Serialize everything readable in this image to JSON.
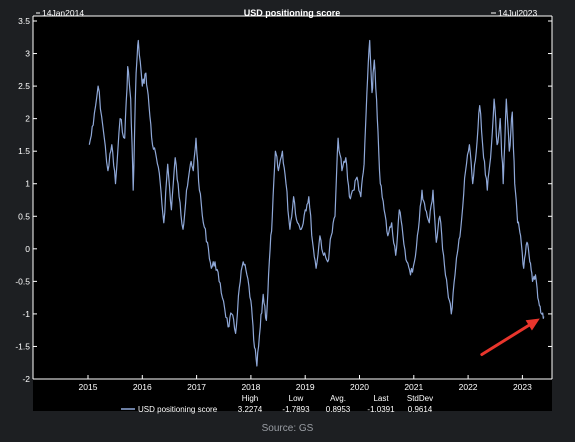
{
  "source_caption": "Source: GS",
  "chart_data": {
    "type": "line",
    "title": "USD positioning score",
    "date_start_label": "14Jan2014",
    "date_end_label": "14Jul2023",
    "x_range": [
      "2014-01-14",
      "2023-07-14"
    ],
    "ylim": [
      -2,
      3.5
    ],
    "y_ticks": [
      "3.5",
      "3",
      "2.5",
      "2",
      "1.5",
      "1",
      "0.5",
      "0",
      "-0.5",
      "-1",
      "-1.5",
      "-2"
    ],
    "x_ticks": [
      "2015",
      "2016",
      "2017",
      "2018",
      "2019",
      "2020",
      "2021",
      "2022",
      "2023"
    ],
    "series": [
      {
        "name": "USD positioning score",
        "color": "#8fa8d8",
        "points": [
          [
            "2015-01-10",
            1.6
          ],
          [
            "2015-02-05",
            1.9
          ],
          [
            "2015-03-10",
            2.5
          ],
          [
            "2015-04-10",
            1.9
          ],
          [
            "2015-05-15",
            1.2
          ],
          [
            "2015-06-10",
            1.6
          ],
          [
            "2015-07-05",
            1.0
          ],
          [
            "2015-08-05",
            2.0
          ],
          [
            "2015-09-05",
            1.7
          ],
          [
            "2015-09-25",
            2.8
          ],
          [
            "2015-10-15",
            2.3
          ],
          [
            "2015-11-01",
            0.9
          ],
          [
            "2015-11-20",
            2.7
          ],
          [
            "2015-12-05",
            3.2
          ],
          [
            "2016-01-01",
            2.5
          ],
          [
            "2016-01-25",
            2.7
          ],
          [
            "2016-02-15",
            2.2
          ],
          [
            "2016-03-10",
            1.6
          ],
          [
            "2016-04-05",
            1.4
          ],
          [
            "2016-05-01",
            1.0
          ],
          [
            "2016-05-25",
            0.4
          ],
          [
            "2016-06-20",
            1.3
          ],
          [
            "2016-07-15",
            0.6
          ],
          [
            "2016-08-10",
            1.4
          ],
          [
            "2016-09-05",
            0.8
          ],
          [
            "2016-10-01",
            0.3
          ],
          [
            "2016-10-25",
            0.9
          ],
          [
            "2016-11-20",
            1.3
          ],
          [
            "2016-12-10",
            1.2
          ],
          [
            "2016-12-28",
            1.7
          ],
          [
            "2017-01-20",
            0.9
          ],
          [
            "2017-02-15",
            0.4
          ],
          [
            "2017-03-15",
            0.1
          ],
          [
            "2017-04-10",
            -0.3
          ],
          [
            "2017-05-05",
            -0.2
          ],
          [
            "2017-06-01",
            -0.5
          ],
          [
            "2017-07-01",
            -0.8
          ],
          [
            "2017-08-01",
            -1.2
          ],
          [
            "2017-08-25",
            -1.0
          ],
          [
            "2017-09-20",
            -1.3
          ],
          [
            "2017-10-15",
            -0.6
          ],
          [
            "2017-11-10",
            -0.2
          ],
          [
            "2017-12-05",
            -0.4
          ],
          [
            "2018-01-01",
            -0.8
          ],
          [
            "2018-01-20",
            -1.4
          ],
          [
            "2018-02-10",
            -1.8
          ],
          [
            "2018-03-05",
            -1.2
          ],
          [
            "2018-03-25",
            -0.7
          ],
          [
            "2018-04-15",
            -1.1
          ],
          [
            "2018-05-05",
            -0.2
          ],
          [
            "2018-05-25",
            0.5
          ],
          [
            "2018-06-15",
            1.5
          ],
          [
            "2018-07-05",
            1.2
          ],
          [
            "2018-08-01",
            1.5
          ],
          [
            "2018-08-25",
            1.0
          ],
          [
            "2018-09-20",
            0.3
          ],
          [
            "2018-10-15",
            0.8
          ],
          [
            "2018-11-10",
            0.4
          ],
          [
            "2018-12-05",
            0.3
          ],
          [
            "2019-01-01",
            0.6
          ],
          [
            "2019-01-25",
            0.8
          ],
          [
            "2019-02-20",
            0.1
          ],
          [
            "2019-03-15",
            -0.3
          ],
          [
            "2019-04-10",
            0.2
          ],
          [
            "2019-05-05",
            -0.1
          ],
          [
            "2019-06-01",
            -0.2
          ],
          [
            "2019-06-25",
            0.2
          ],
          [
            "2019-07-20",
            0.5
          ],
          [
            "2019-08-10",
            1.7
          ],
          [
            "2019-09-05",
            1.2
          ],
          [
            "2019-10-01",
            1.4
          ],
          [
            "2019-10-25",
            0.8
          ],
          [
            "2019-11-20",
            0.9
          ],
          [
            "2019-12-15",
            1.1
          ],
          [
            "2020-01-10",
            0.8
          ],
          [
            "2020-02-01",
            1.3
          ],
          [
            "2020-02-20",
            2.4
          ],
          [
            "2020-03-10",
            3.2
          ],
          [
            "2020-03-25",
            2.4
          ],
          [
            "2020-04-10",
            2.9
          ],
          [
            "2020-04-30",
            2.0
          ],
          [
            "2020-05-20",
            1.0
          ],
          [
            "2020-06-15",
            0.6
          ],
          [
            "2020-07-10",
            0.2
          ],
          [
            "2020-08-05",
            0.4
          ],
          [
            "2020-09-01",
            -0.1
          ],
          [
            "2020-09-25",
            0.6
          ],
          [
            "2020-10-20",
            0.2
          ],
          [
            "2020-11-15",
            -0.2
          ],
          [
            "2020-12-10",
            -0.4
          ],
          [
            "2021-01-05",
            -0.2
          ],
          [
            "2021-02-01",
            0.3
          ],
          [
            "2021-02-25",
            0.9
          ],
          [
            "2021-03-20",
            0.6
          ],
          [
            "2021-04-15",
            0.4
          ],
          [
            "2021-05-10",
            0.9
          ],
          [
            "2021-06-01",
            0.1
          ],
          [
            "2021-06-25",
            0.5
          ],
          [
            "2021-07-20",
            -0.1
          ],
          [
            "2021-08-15",
            -0.6
          ],
          [
            "2021-09-10",
            -1.0
          ],
          [
            "2021-10-05",
            -0.4
          ],
          [
            "2021-10-25",
            0.0
          ],
          [
            "2021-11-20",
            0.5
          ],
          [
            "2021-12-15",
            1.2
          ],
          [
            "2022-01-10",
            1.6
          ],
          [
            "2022-02-01",
            1.0
          ],
          [
            "2022-02-25",
            1.5
          ],
          [
            "2022-03-20",
            2.2
          ],
          [
            "2022-04-15",
            1.4
          ],
          [
            "2022-05-10",
            0.9
          ],
          [
            "2022-06-01",
            1.4
          ],
          [
            "2022-06-25",
            2.3
          ],
          [
            "2022-07-15",
            1.6
          ],
          [
            "2022-08-05",
            2.0
          ],
          [
            "2022-08-25",
            1.0
          ],
          [
            "2022-09-15",
            2.3
          ],
          [
            "2022-10-05",
            1.5
          ],
          [
            "2022-10-25",
            2.1
          ],
          [
            "2022-11-10",
            1.0
          ],
          [
            "2022-11-30",
            0.4
          ],
          [
            "2022-12-20",
            0.2
          ],
          [
            "2023-01-10",
            -0.3
          ],
          [
            "2023-02-01",
            0.1
          ],
          [
            "2023-02-20",
            -0.2
          ],
          [
            "2023-03-10",
            -0.5
          ],
          [
            "2023-03-30",
            -0.4
          ],
          [
            "2023-04-20",
            -0.8
          ],
          [
            "2023-05-10",
            -1.0
          ],
          [
            "2023-05-25",
            -1.04
          ]
        ]
      }
    ],
    "stats": {
      "headers": [
        "High",
        "Low",
        "Avg.",
        "Last",
        "StdDev"
      ],
      "values": [
        "3.2274",
        "-1.7893",
        "0.8953",
        "-1.0391",
        "0.9614"
      ]
    },
    "annotation": {
      "type": "arrow",
      "color": "#e8352c",
      "points_to": [
        "2023-05-25",
        -1.04
      ]
    },
    "background": "#000000",
    "axis_color": "#ffffff",
    "grid": false
  }
}
